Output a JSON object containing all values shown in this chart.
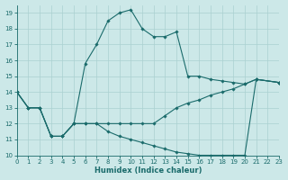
{
  "xlabel": "Humidex (Indice chaleur)",
  "bg_color": "#cce8e8",
  "grid_color": "#aad0d0",
  "line_color": "#1a6b6b",
  "xlim": [
    0,
    23
  ],
  "ylim": [
    10,
    19.5
  ],
  "xticks": [
    0,
    1,
    2,
    3,
    4,
    5,
    6,
    7,
    8,
    9,
    10,
    11,
    12,
    13,
    14,
    15,
    16,
    17,
    18,
    19,
    20,
    21,
    22,
    23
  ],
  "yticks": [
    10,
    11,
    12,
    13,
    14,
    15,
    16,
    17,
    18,
    19
  ],
  "line1_x": [
    0,
    1,
    2,
    3,
    4,
    5,
    6,
    7,
    8,
    9,
    10,
    11,
    12,
    13,
    14,
    15,
    16,
    17,
    18,
    19,
    20,
    21,
    23
  ],
  "line1_y": [
    14,
    13,
    13,
    11.2,
    11.2,
    12,
    15.8,
    17,
    18.5,
    19,
    19.2,
    18,
    17.5,
    17.5,
    17.8,
    15,
    15,
    14.8,
    14.7,
    14.6,
    14.5,
    14.8,
    14.6
  ],
  "line2_x": [
    0,
    1,
    2,
    3,
    4,
    5,
    6,
    7,
    8,
    9,
    10,
    11,
    12,
    13,
    14,
    15,
    16,
    17,
    18,
    19,
    20,
    21,
    23
  ],
  "line2_y": [
    14,
    13,
    13,
    11.2,
    11.2,
    12,
    12,
    12,
    12,
    12,
    12,
    12,
    12,
    12.5,
    13,
    13.3,
    13.5,
    13.8,
    14.0,
    14.2,
    14.5,
    14.8,
    14.6
  ],
  "line3_x": [
    0,
    1,
    2,
    3,
    4,
    5,
    6,
    7,
    8,
    9,
    10,
    11,
    12,
    13,
    14,
    15,
    16,
    17,
    18,
    19,
    20,
    21,
    23
  ],
  "line3_y": [
    14,
    13,
    13,
    11.2,
    11.2,
    12,
    12,
    12,
    11.5,
    11.2,
    11.0,
    10.8,
    10.6,
    10.4,
    10.2,
    10.1,
    10.0,
    10.0,
    10.0,
    10.0,
    10.0,
    14.8,
    14.6
  ]
}
